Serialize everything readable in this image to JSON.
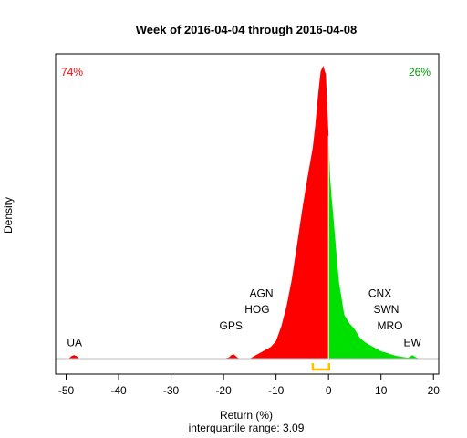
{
  "chart_data": {
    "type": "area",
    "title": "Week of 2016-04-04 through 2016-04-08",
    "xlabel": "Return (%)",
    "ylabel": "Density",
    "subtitle": "interquartile range: 3.09",
    "xlim": [
      -52,
      21
    ],
    "ylim": [
      0,
      1
    ],
    "xticks": [
      -50,
      -40,
      -30,
      -20,
      -10,
      0,
      10,
      20
    ],
    "grid": false,
    "negative_share": "74%",
    "positive_share": "26%",
    "colors": {
      "negative": "#ff0000",
      "positive": "#00e000",
      "iqr": "#ffc000",
      "baseline": "#bebebe"
    },
    "iqr": [
      -3.0,
      0.1
    ],
    "density": {
      "x": [
        -49.5,
        -49,
        -48.5,
        -48,
        -47.5,
        -20,
        -19,
        -18.5,
        -18,
        -17.5,
        -17,
        -15,
        -14,
        -13,
        -12,
        -11,
        -10,
        -9,
        -8,
        -7,
        -6,
        -5,
        -4,
        -3,
        -2.5,
        -2,
        -1.5,
        -1,
        -0.5,
        0,
        0.3,
        0.6,
        1,
        1.5,
        2,
        3,
        4,
        5,
        6,
        7,
        8,
        9,
        10,
        11,
        12,
        13,
        14,
        15,
        15.5,
        16,
        16.5,
        17,
        17.5
      ],
      "y": [
        0,
        0.008,
        0.012,
        0.008,
        0,
        0,
        0.004,
        0.012,
        0.014,
        0.006,
        0,
        0,
        0.01,
        0.02,
        0.03,
        0.04,
        0.06,
        0.11,
        0.18,
        0.27,
        0.39,
        0.51,
        0.62,
        0.72,
        0.8,
        0.9,
        0.98,
        1.0,
        0.97,
        0.76,
        0.62,
        0.55,
        0.47,
        0.36,
        0.26,
        0.15,
        0.12,
        0.1,
        0.07,
        0.055,
        0.045,
        0.035,
        0.025,
        0.02,
        0.014,
        0.009,
        0.006,
        0.003,
        0.006,
        0.012,
        0.006,
        0.002,
        0
      ]
    },
    "annotations": [
      {
        "label": "UA",
        "x": -48.4,
        "y": 0.042
      },
      {
        "label": "GPS",
        "x": -18.6,
        "y": 0.1
      },
      {
        "label": "HOG",
        "x": -13.6,
        "y": 0.155
      },
      {
        "label": "AGN",
        "x": -12.8,
        "y": 0.21
      },
      {
        "label": "CNX",
        "x": 9.8,
        "y": 0.21
      },
      {
        "label": "SWN",
        "x": 11,
        "y": 0.155
      },
      {
        "label": "MRO",
        "x": 11.7,
        "y": 0.1
      },
      {
        "label": "EW",
        "x": 16,
        "y": 0.042
      }
    ]
  }
}
